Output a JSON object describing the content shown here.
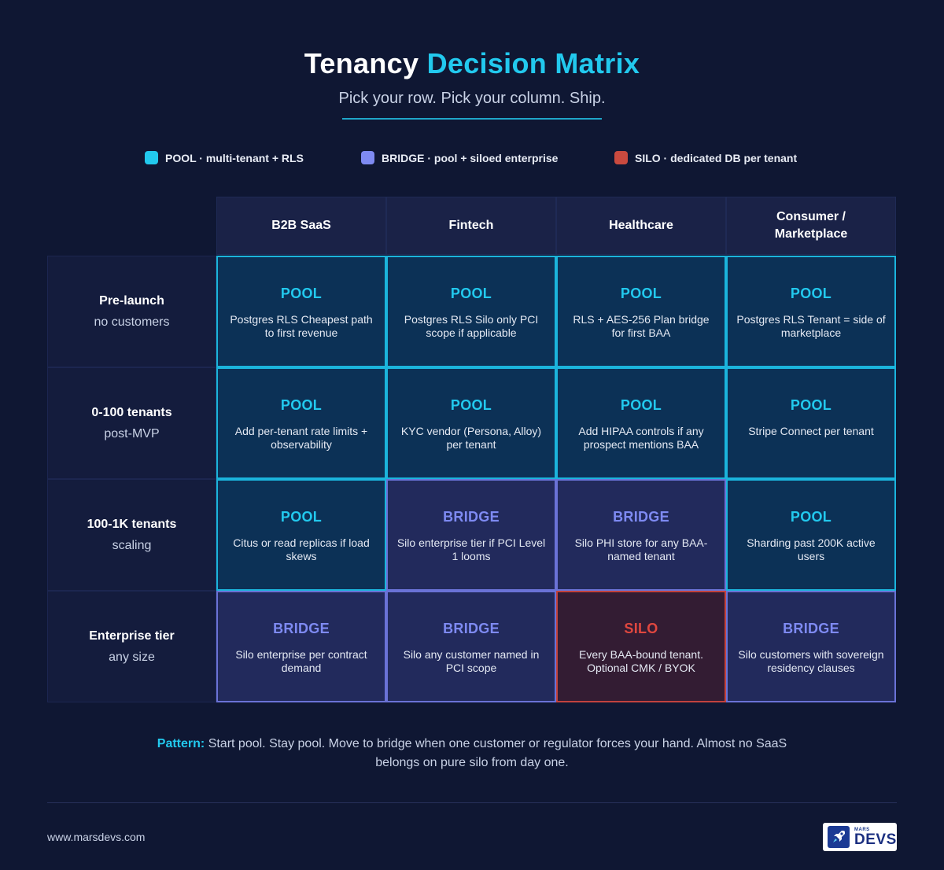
{
  "header": {
    "title_main": "Tenancy",
    "title_accent": "Decision Matrix",
    "subtitle": "Pick your row. Pick your column. Ship."
  },
  "legend": [
    {
      "label": "POOL · multi-tenant + RLS",
      "color": "#22c9ee"
    },
    {
      "label": "BRIDGE · pool + siloed enterprise",
      "color": "#7e8af2"
    },
    {
      "label": "SILO · dedicated DB per tenant",
      "color": "#c94a3f"
    }
  ],
  "columns": [
    {
      "label": "B2B SaaS"
    },
    {
      "label": "Fintech"
    },
    {
      "label": "Healthcare"
    },
    {
      "label": "Consumer / Marketplace"
    }
  ],
  "rows": [
    {
      "title": "Pre-launch",
      "sub": "no customers",
      "cells": [
        {
          "type": "POOL",
          "note": "Postgres RLS Cheapest path to first revenue"
        },
        {
          "type": "POOL",
          "note": "Postgres RLS Silo only PCI scope if applicable"
        },
        {
          "type": "POOL",
          "note": "RLS + AES-256 Plan bridge for first BAA"
        },
        {
          "type": "POOL",
          "note": "Postgres RLS Tenant = side of marketplace"
        }
      ]
    },
    {
      "title": "0-100 tenants",
      "sub": "post-MVP",
      "cells": [
        {
          "type": "POOL",
          "note": "Add per-tenant rate limits + observability"
        },
        {
          "type": "POOL",
          "note": "KYC vendor (Persona, Alloy) per tenant"
        },
        {
          "type": "POOL",
          "note": "Add HIPAA controls if any prospect mentions BAA"
        },
        {
          "type": "POOL",
          "note": "Stripe Connect per tenant"
        }
      ]
    },
    {
      "title": "100-1K tenants",
      "sub": "scaling",
      "cells": [
        {
          "type": "POOL",
          "note": "Citus or read replicas if load skews"
        },
        {
          "type": "BRIDGE",
          "note": "Silo enterprise tier if PCI Level 1 looms"
        },
        {
          "type": "BRIDGE",
          "note": "Silo PHI store for any BAA-named tenant"
        },
        {
          "type": "POOL",
          "note": "Sharding past 200K active users"
        }
      ]
    },
    {
      "title": "Enterprise tier",
      "sub": "any size",
      "cells": [
        {
          "type": "BRIDGE",
          "note": "Silo enterprise per contract demand"
        },
        {
          "type": "BRIDGE",
          "note": "Silo any customer named in PCI scope"
        },
        {
          "type": "SILO",
          "note": "Every BAA-bound tenant. Optional CMK / BYOK"
        },
        {
          "type": "BRIDGE",
          "note": "Silo customers with sovereign residency clauses"
        }
      ]
    }
  ],
  "pattern": {
    "label": "Pattern:",
    "text": "Start pool. Stay pool. Move to bridge when one customer or regulator forces your hand. Almost no SaaS belongs on pure silo from day one."
  },
  "footer": {
    "site": "www.marsdevs.com",
    "logo_small": "MARS",
    "logo_big": "DEVS"
  }
}
